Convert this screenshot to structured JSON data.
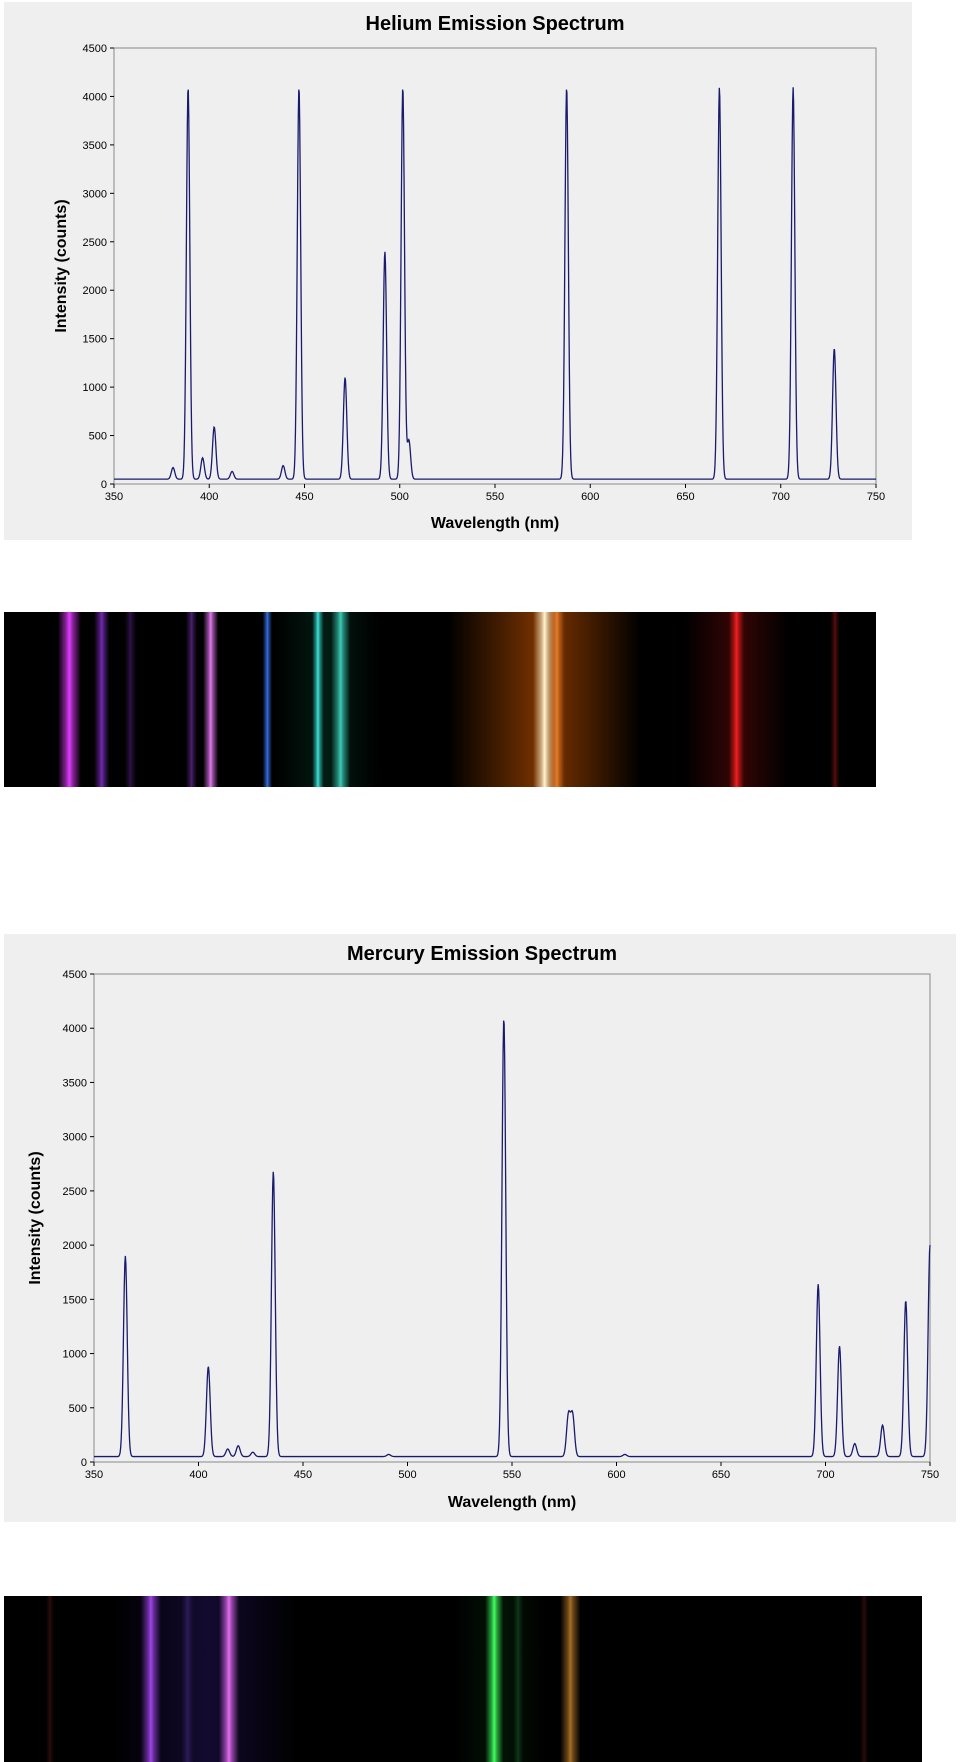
{
  "chart_data": [
    {
      "type": "line",
      "title": "Helium Emission Spectrum",
      "xlabel": "Wavelength (nm)",
      "ylabel": "Intensity (counts)",
      "xlim": [
        350,
        750
      ],
      "ylim": [
        0,
        4500
      ],
      "xticks": [
        "350",
        "400",
        "450",
        "500",
        "550",
        "600",
        "650",
        "700",
        "750"
      ],
      "yticks": [
        "0",
        "500",
        "1000",
        "1500",
        "2000",
        "2500",
        "3000",
        "3500",
        "4000",
        "4500"
      ],
      "grid": false,
      "line_color": "#1a1a6e",
      "baseline": 50,
      "peaks": [
        {
          "x": 381,
          "y": 170
        },
        {
          "x": 388.9,
          "y": 4095
        },
        {
          "x": 396.5,
          "y": 270
        },
        {
          "x": 402.6,
          "y": 590
        },
        {
          "x": 412,
          "y": 130
        },
        {
          "x": 438.8,
          "y": 190
        },
        {
          "x": 447.1,
          "y": 4095
        },
        {
          "x": 471.3,
          "y": 1100
        },
        {
          "x": 492.2,
          "y": 2400
        },
        {
          "x": 501.6,
          "y": 4095
        },
        {
          "x": 504.8,
          "y": 450
        },
        {
          "x": 587.6,
          "y": 4095
        },
        {
          "x": 667.8,
          "y": 4095
        },
        {
          "x": 706.5,
          "y": 4095
        },
        {
          "x": 728.1,
          "y": 1400
        }
      ]
    },
    {
      "type": "line",
      "title": "Mercury Emission Spectrum",
      "xlabel": "Wavelength (nm)",
      "ylabel": "Intensity (counts)",
      "xlim": [
        350,
        750
      ],
      "ylim": [
        0,
        4500
      ],
      "xticks": [
        "350",
        "400",
        "450",
        "500",
        "550",
        "600",
        "650",
        "700",
        "750"
      ],
      "yticks": [
        "0",
        "500",
        "1000",
        "1500",
        "2000",
        "2500",
        "3000",
        "3500",
        "4000",
        "4500"
      ],
      "grid": false,
      "line_color": "#1a1a6e",
      "baseline": 50,
      "peaks": [
        {
          "x": 365,
          "y": 1900
        },
        {
          "x": 404.7,
          "y": 880
        },
        {
          "x": 414,
          "y": 120
        },
        {
          "x": 419,
          "y": 150
        },
        {
          "x": 426,
          "y": 90
        },
        {
          "x": 435.8,
          "y": 2680
        },
        {
          "x": 491,
          "y": 70
        },
        {
          "x": 546.1,
          "y": 4095
        },
        {
          "x": 577,
          "y": 430
        },
        {
          "x": 579,
          "y": 430
        },
        {
          "x": 604,
          "y": 70
        },
        {
          "x": 696.5,
          "y": 1640
        },
        {
          "x": 706.7,
          "y": 1070
        },
        {
          "x": 714,
          "y": 170
        },
        {
          "x": 727.3,
          "y": 340
        },
        {
          "x": 738.4,
          "y": 1490
        },
        {
          "x": 750,
          "y": 2000
        }
      ]
    }
  ],
  "spectrum_strips": [
    {
      "name": "helium-spectrum-strip",
      "lines": [
        {
          "pos": 0.075,
          "color": "#e03cff",
          "intensity": 1.0,
          "width": 0.012
        },
        {
          "pos": 0.112,
          "color": "#a63cff",
          "intensity": 0.7,
          "width": 0.008
        },
        {
          "pos": 0.145,
          "color": "#6a2aa8",
          "intensity": 0.45,
          "width": 0.006
        },
        {
          "pos": 0.215,
          "color": "#8a3cd0",
          "intensity": 0.55,
          "width": 0.006
        },
        {
          "pos": 0.237,
          "color": "#f080ff",
          "intensity": 0.95,
          "width": 0.008
        },
        {
          "pos": 0.302,
          "color": "#3c7cff",
          "intensity": 0.9,
          "width": 0.005
        },
        {
          "pos": 0.36,
          "color": "#3cf0e8",
          "intensity": 0.95,
          "width": 0.006
        },
        {
          "pos": 0.386,
          "color": "#40e0c8",
          "intensity": 0.9,
          "width": 0.01
        },
        {
          "pos": 0.62,
          "color": "#fff4d0",
          "intensity": 1.0,
          "width": 0.012
        },
        {
          "pos": 0.634,
          "color": "#ff8a30",
          "intensity": 0.85,
          "width": 0.008
        },
        {
          "pos": 0.84,
          "color": "#ff2020",
          "intensity": 0.95,
          "width": 0.008
        },
        {
          "pos": 0.953,
          "color": "#a01818",
          "intensity": 0.55,
          "width": 0.005
        }
      ],
      "glow": [
        {
          "pos": 0.62,
          "color": "#ff6a00",
          "spread": 0.22,
          "intensity": 0.5
        },
        {
          "pos": 0.84,
          "color": "#a01010",
          "spread": 0.12,
          "intensity": 0.35
        },
        {
          "pos": 0.37,
          "color": "#0a6040",
          "spread": 0.12,
          "intensity": 0.3
        }
      ]
    },
    {
      "name": "mercury-spectrum-strip",
      "lines": [
        {
          "pos": 0.05,
          "color": "#802020",
          "intensity": 0.35,
          "width": 0.004
        },
        {
          "pos": 0.16,
          "color": "#b04cff",
          "intensity": 0.9,
          "width": 0.01
        },
        {
          "pos": 0.2,
          "color": "#5a3aa0",
          "intensity": 0.4,
          "width": 0.006
        },
        {
          "pos": 0.245,
          "color": "#f070ff",
          "intensity": 0.95,
          "width": 0.01
        },
        {
          "pos": 0.534,
          "color": "#40ff60",
          "intensity": 1.0,
          "width": 0.009
        },
        {
          "pos": 0.56,
          "color": "#2a8a40",
          "intensity": 0.35,
          "width": 0.005
        },
        {
          "pos": 0.617,
          "color": "#d08a30",
          "intensity": 0.8,
          "width": 0.01
        },
        {
          "pos": 0.937,
          "color": "#802020",
          "intensity": 0.35,
          "width": 0.004
        }
      ],
      "glow": [
        {
          "pos": 0.22,
          "color": "#201050",
          "spread": 0.2,
          "intensity": 0.6
        },
        {
          "pos": 0.54,
          "color": "#0a3a10",
          "spread": 0.1,
          "intensity": 0.35
        }
      ]
    }
  ]
}
